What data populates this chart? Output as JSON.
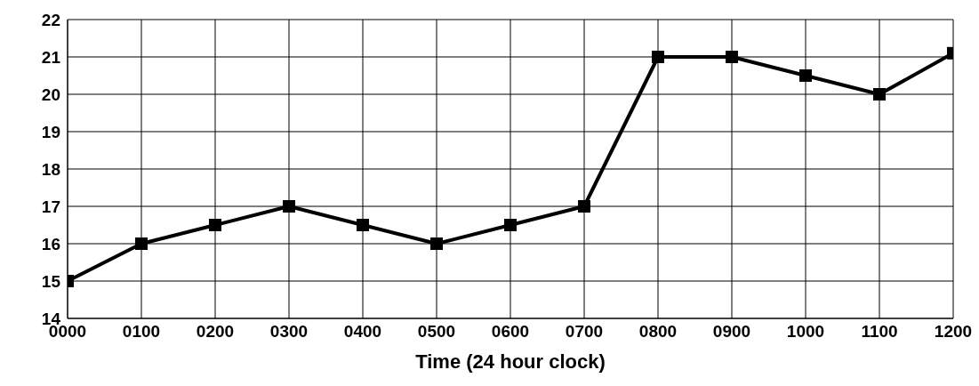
{
  "chart_data": {
    "type": "line",
    "xlabel": "Time (24 hour clock)",
    "categories": [
      "0000",
      "0100",
      "0200",
      "0300",
      "0400",
      "0500",
      "0600",
      "0700",
      "0800",
      "0900",
      "1000",
      "1100",
      "1200"
    ],
    "values": [
      15,
      16,
      16.5,
      17,
      16.5,
      16,
      16.5,
      17,
      21,
      21,
      20.5,
      20,
      21.1
    ],
    "color": "#000000",
    "marker": "square",
    "grid": true,
    "ylim": [
      14,
      22
    ],
    "yticks": [
      14,
      15,
      16,
      17,
      18,
      19,
      20,
      21,
      22
    ]
  }
}
